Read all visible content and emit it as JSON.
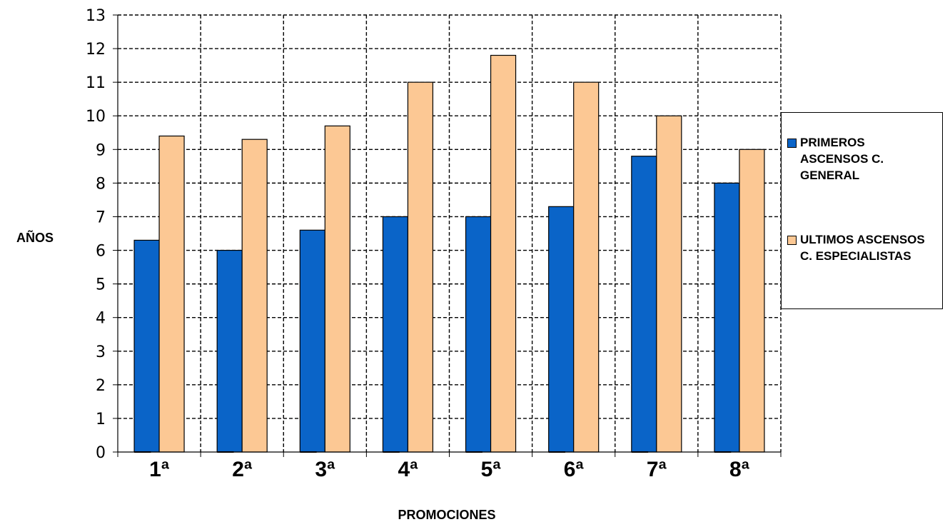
{
  "chart_data": {
    "type": "bar",
    "title": "",
    "xlabel": "PROMOCIONES",
    "ylabel": "AÑOS",
    "categories": [
      "1ª",
      "2ª",
      "3ª",
      "4ª",
      "5ª",
      "6ª",
      "7ª",
      "8ª"
    ],
    "series": [
      {
        "name": "PRIMEROS ASCENSOS C. GENERAL",
        "values": [
          6.3,
          6.0,
          6.6,
          7.0,
          7.0,
          7.3,
          8.8,
          8.0
        ],
        "color": "#0a64c8"
      },
      {
        "name": "ULTIMOS ASCENSOS C. ESPECIALISTAS",
        "values": [
          9.4,
          9.3,
          9.7,
          11.0,
          11.8,
          11.0,
          10.0,
          9.0
        ],
        "color": "#fcc894"
      }
    ],
    "ylim": [
      0,
      13
    ],
    "yticks": [
      "0",
      "1",
      "2",
      "3",
      "4",
      "5",
      "6",
      "7",
      "8",
      "9",
      "10",
      "11",
      "12",
      "13"
    ],
    "grid": true,
    "legend_position": "right"
  }
}
